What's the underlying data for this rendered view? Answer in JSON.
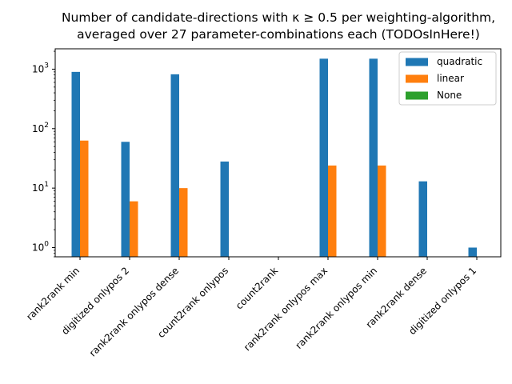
{
  "chart_data": {
    "type": "bar",
    "title_lines": [
      "Number of candidate-directions with κ ≥ 0.5 per weighting-algorithm,",
      "averaged over 27 parameter-combinations each (TODOsInHere!)"
    ],
    "yscale": "log",
    "ylim": [
      0.7,
      2200
    ],
    "yticks": [
      {
        "value": 1,
        "base": "10",
        "exp": "0"
      },
      {
        "value": 10,
        "base": "10",
        "exp": "1"
      },
      {
        "value": 100,
        "base": "10",
        "exp": "2"
      },
      {
        "value": 1000,
        "base": "10",
        "exp": "3"
      }
    ],
    "categories": [
      "rank2rank min",
      "digitized onlypos 2",
      "rank2rank onlypos dense",
      "count2rank onlypos",
      "count2rank",
      "rank2rank onlypos max",
      "rank2rank onlypos min",
      "rank2rank dense",
      "digitized onlypos 1"
    ],
    "series": [
      {
        "name": "quadratic",
        "color": "#1f77b4",
        "values": [
          900,
          60,
          820,
          28,
          0,
          1500,
          1500,
          13,
          1
        ]
      },
      {
        "name": "linear",
        "color": "#ff7f0e",
        "values": [
          63,
          6,
          10,
          0,
          0,
          24,
          24,
          0,
          0
        ]
      },
      {
        "name": "None",
        "color": "#2ca02c",
        "values": [
          0,
          0,
          0,
          0,
          0,
          0,
          0,
          0,
          0
        ]
      }
    ],
    "legend_position": "top-right",
    "grid": false
  }
}
